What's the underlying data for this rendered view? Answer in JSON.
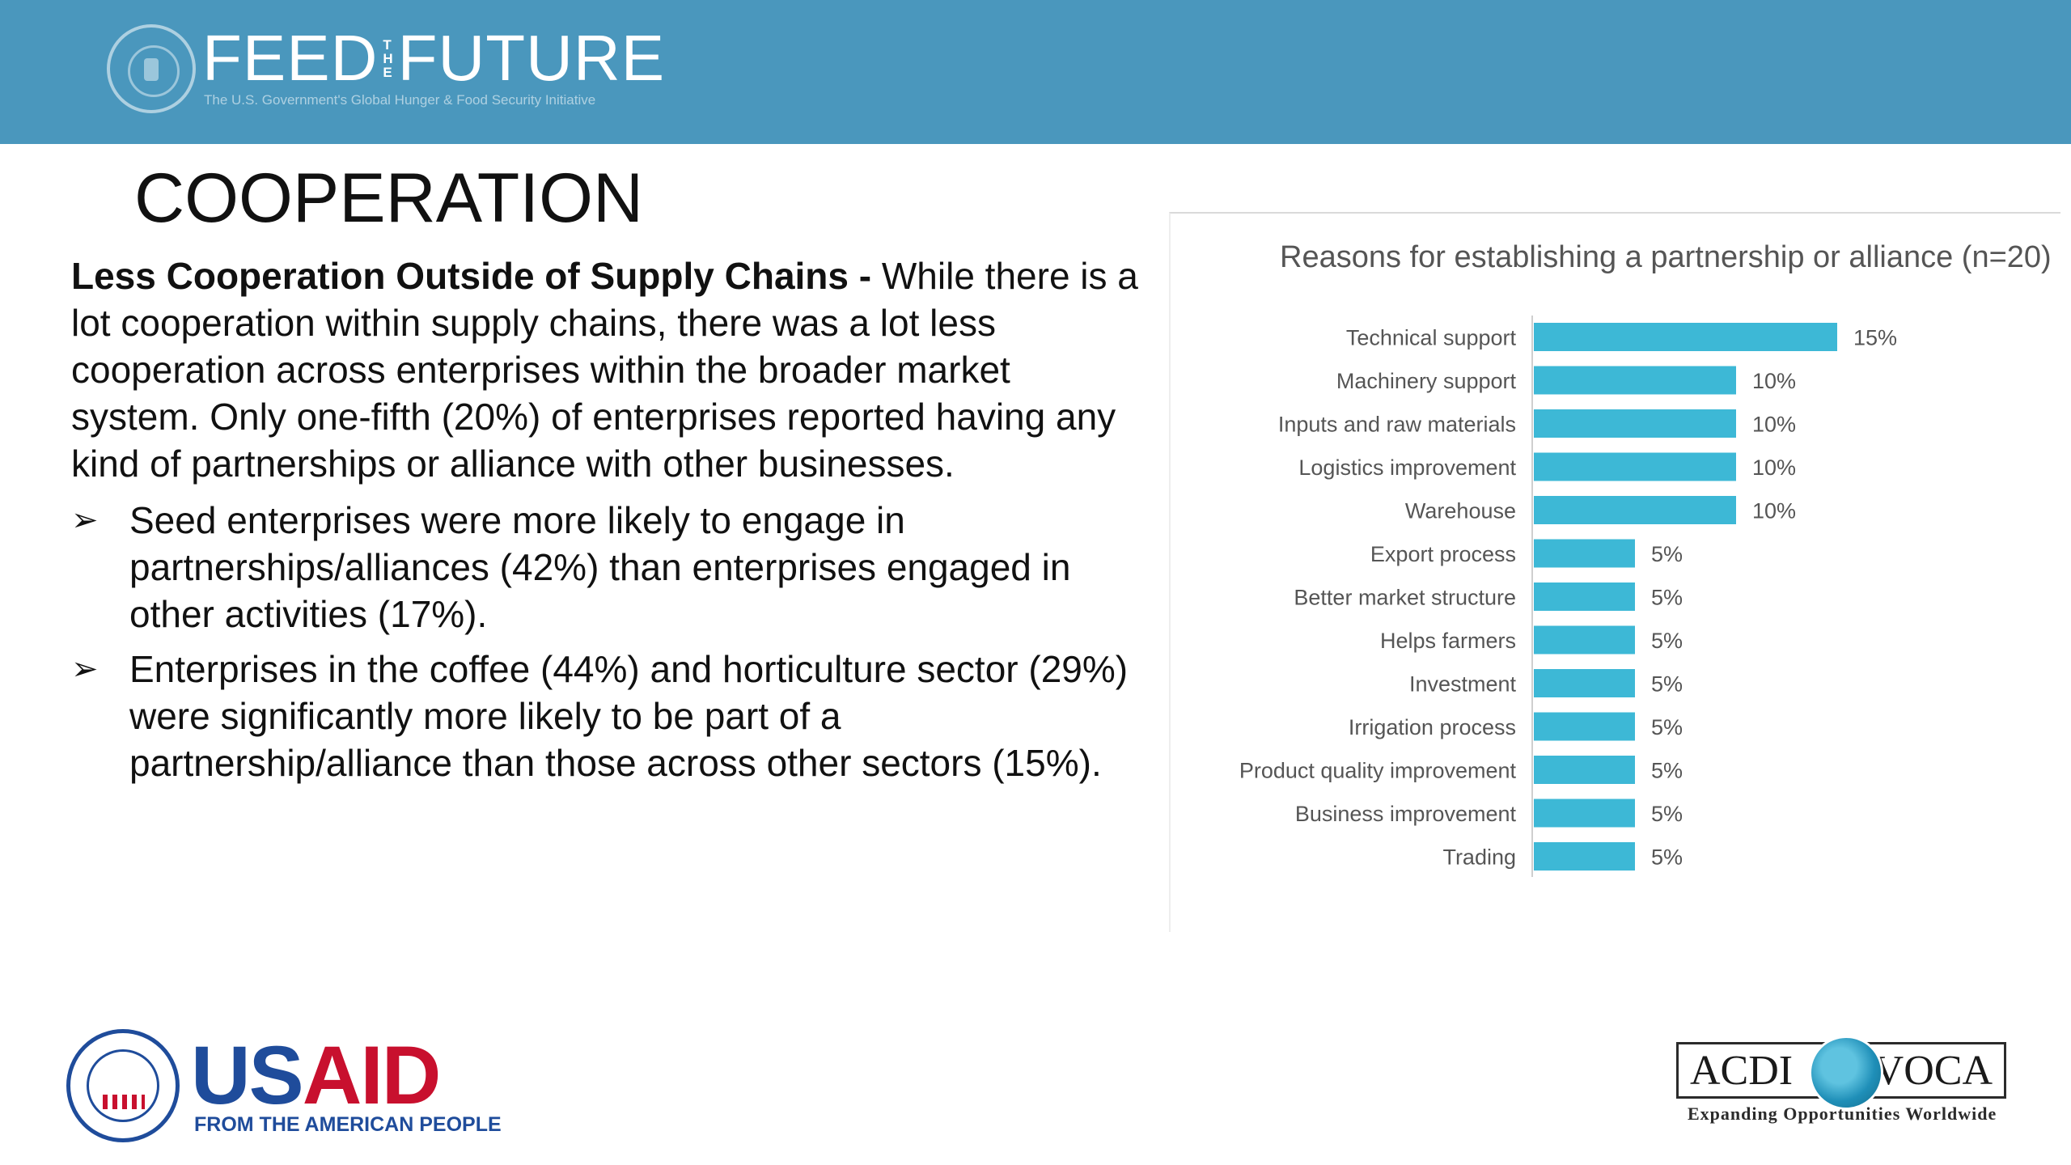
{
  "header": {
    "brand_left": "FEED",
    "brand_the_1": "T",
    "brand_the_2": "H",
    "brand_the_3": "E",
    "brand_right": "FUTURE",
    "tagline": "The U.S. Government's Global Hunger & Food Security Initiative"
  },
  "slide": {
    "title": "COOPERATION",
    "lead_bold": "Less Cooperation Outside of Supply Chains - ",
    "lead_text": "While there is a lot cooperation within supply chains, there was a lot less cooperation across enterprises within the broader market system. Only one-fifth (20%) of enterprises reported having any kind of partnerships or alliance with other businesses.",
    "bullets": [
      "Seed enterprises were more likely to engage in partnerships/alliances (42%) than enterprises engaged in other activities (17%).",
      "Enterprises in the coffee (44%) and horticulture sector (29%) were significantly more likely to be part of a partnership/alliance than those across other sectors (15%)."
    ],
    "bullet_glyph": "➢"
  },
  "chart_data": {
    "type": "bar",
    "orientation": "horizontal",
    "title": "Reasons for establishing a partnership or alliance (n=20)",
    "categories": [
      "Technical support",
      "Machinery support",
      "Inputs and raw materials",
      "Logistics improvement",
      "Warehouse",
      "Export process",
      "Better market structure",
      "Helps farmers",
      "Investment",
      "Irrigation process",
      "Product quality improvement",
      "Business improvement",
      "Trading"
    ],
    "values": [
      15,
      10,
      10,
      10,
      10,
      5,
      5,
      5,
      5,
      5,
      5,
      5,
      5
    ],
    "labels": [
      "15%",
      "10%",
      "10%",
      "10%",
      "10%",
      "5%",
      "5%",
      "5%",
      "5%",
      "5%",
      "5%",
      "5%",
      "5%"
    ],
    "unit": "%",
    "xlim": [
      0,
      15
    ],
    "bar_color": "#3db8d6",
    "grid": false,
    "legend": false
  },
  "footer": {
    "usaid_us": "US",
    "usaid_aid": "AID",
    "usaid_sub": "FROM THE AMERICAN PEOPLE",
    "acdi_left": "ACDI",
    "acdi_right": "VOCA",
    "acdi_sub": "Expanding Opportunities Worldwide"
  }
}
